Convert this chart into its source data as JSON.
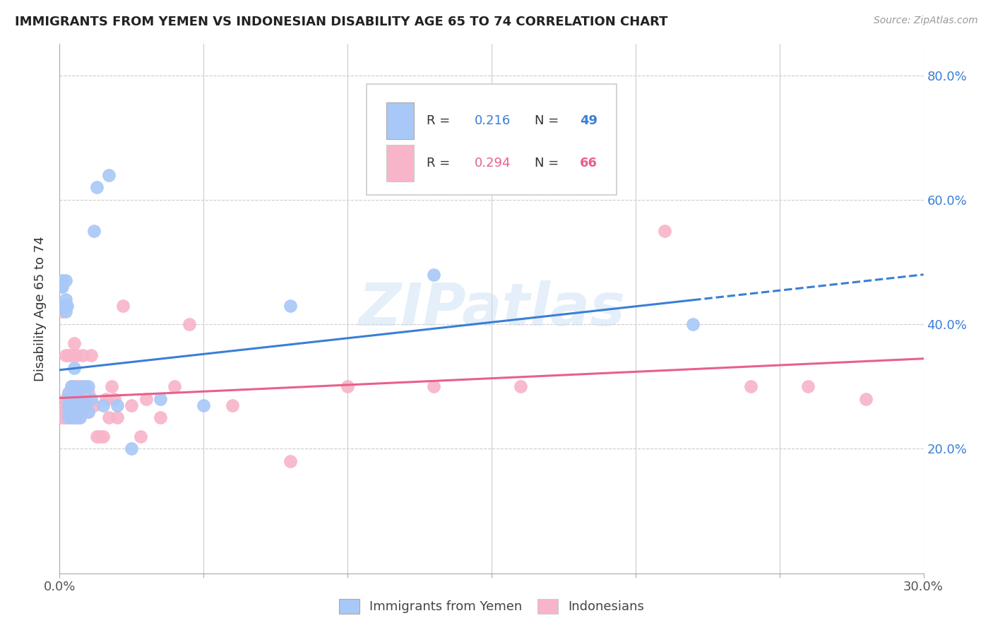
{
  "title": "IMMIGRANTS FROM YEMEN VS INDONESIAN DISABILITY AGE 65 TO 74 CORRELATION CHART",
  "source": "Source: ZipAtlas.com",
  "ylabel": "Disability Age 65 to 74",
  "x_min": 0.0,
  "x_max": 0.3,
  "y_min": 0.0,
  "y_max": 0.85,
  "x_ticks": [
    0.0,
    0.05,
    0.1,
    0.15,
    0.2,
    0.25,
    0.3
  ],
  "y_ticks": [
    0.0,
    0.2,
    0.4,
    0.6,
    0.8
  ],
  "color_yemen": "#a8c8f8",
  "color_indonesian": "#f8b4c8",
  "line_color_yemen": "#3a7fd5",
  "line_color_indonesian": "#e8608a",
  "watermark": "ZIPatlas",
  "yemen_x": [
    0.0005,
    0.001,
    0.001,
    0.0015,
    0.002,
    0.002,
    0.002,
    0.002,
    0.0025,
    0.003,
    0.003,
    0.003,
    0.003,
    0.003,
    0.003,
    0.004,
    0.004,
    0.004,
    0.004,
    0.004,
    0.005,
    0.005,
    0.005,
    0.005,
    0.005,
    0.005,
    0.006,
    0.006,
    0.006,
    0.007,
    0.007,
    0.008,
    0.008,
    0.009,
    0.009,
    0.01,
    0.01,
    0.011,
    0.012,
    0.013,
    0.015,
    0.017,
    0.02,
    0.025,
    0.035,
    0.05,
    0.08,
    0.13,
    0.22
  ],
  "yemen_y": [
    0.46,
    0.46,
    0.47,
    0.43,
    0.42,
    0.43,
    0.44,
    0.47,
    0.43,
    0.25,
    0.26,
    0.27,
    0.27,
    0.28,
    0.29,
    0.25,
    0.26,
    0.27,
    0.28,
    0.3,
    0.25,
    0.26,
    0.27,
    0.28,
    0.3,
    0.33,
    0.25,
    0.27,
    0.29,
    0.25,
    0.28,
    0.27,
    0.3,
    0.27,
    0.3,
    0.26,
    0.3,
    0.28,
    0.55,
    0.62,
    0.27,
    0.64,
    0.27,
    0.2,
    0.28,
    0.27,
    0.43,
    0.48,
    0.4
  ],
  "indonesian_x": [
    0.0005,
    0.001,
    0.001,
    0.001,
    0.0015,
    0.002,
    0.002,
    0.002,
    0.002,
    0.002,
    0.003,
    0.003,
    0.003,
    0.003,
    0.003,
    0.003,
    0.004,
    0.004,
    0.004,
    0.004,
    0.004,
    0.005,
    0.005,
    0.005,
    0.005,
    0.005,
    0.006,
    0.006,
    0.006,
    0.006,
    0.007,
    0.007,
    0.007,
    0.008,
    0.008,
    0.008,
    0.009,
    0.009,
    0.01,
    0.01,
    0.011,
    0.012,
    0.013,
    0.014,
    0.015,
    0.016,
    0.017,
    0.018,
    0.019,
    0.02,
    0.022,
    0.025,
    0.028,
    0.03,
    0.035,
    0.04,
    0.045,
    0.06,
    0.08,
    0.1,
    0.13,
    0.16,
    0.21,
    0.24,
    0.26,
    0.28
  ],
  "indonesian_y": [
    0.25,
    0.25,
    0.26,
    0.42,
    0.25,
    0.25,
    0.26,
    0.27,
    0.28,
    0.35,
    0.25,
    0.26,
    0.27,
    0.28,
    0.29,
    0.35,
    0.25,
    0.26,
    0.27,
    0.3,
    0.35,
    0.25,
    0.27,
    0.28,
    0.3,
    0.37,
    0.25,
    0.27,
    0.3,
    0.35,
    0.25,
    0.27,
    0.3,
    0.27,
    0.3,
    0.35,
    0.27,
    0.28,
    0.26,
    0.29,
    0.35,
    0.27,
    0.22,
    0.22,
    0.22,
    0.28,
    0.25,
    0.3,
    0.28,
    0.25,
    0.43,
    0.27,
    0.22,
    0.28,
    0.25,
    0.3,
    0.4,
    0.27,
    0.18,
    0.3,
    0.3,
    0.3,
    0.55,
    0.3,
    0.3,
    0.28
  ]
}
